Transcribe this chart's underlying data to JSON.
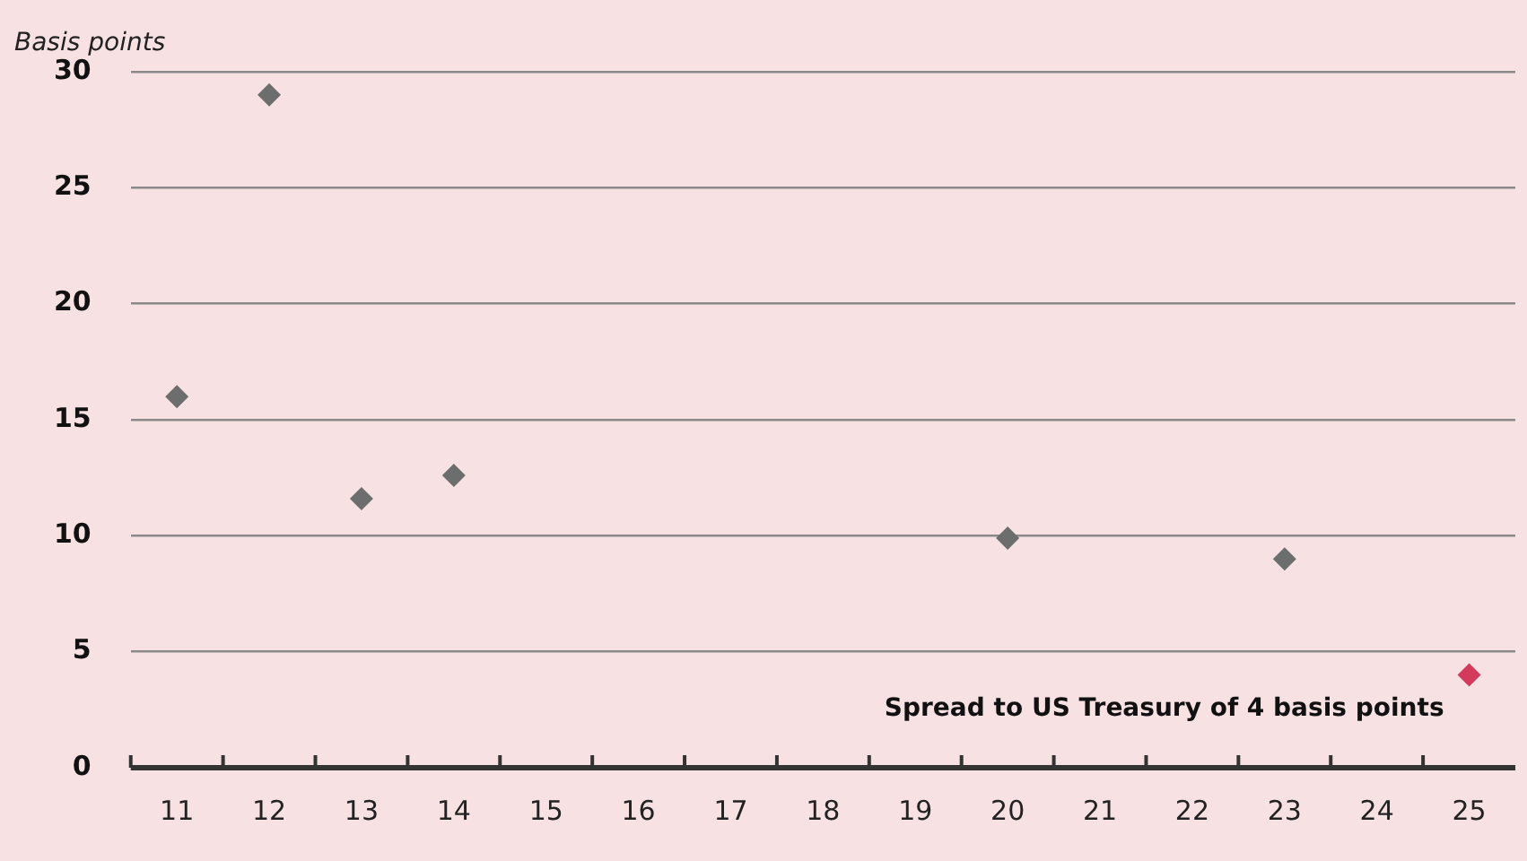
{
  "chart_data": {
    "type": "scatter",
    "ylabel": "Basis points",
    "categories": [
      "11",
      "12",
      "13",
      "14",
      "15",
      "16",
      "17",
      "18",
      "19",
      "20",
      "21",
      "22",
      "23",
      "24",
      "25"
    ],
    "series": [
      {
        "color": "#6b6e6c",
        "values": [
          16,
          29,
          11.6,
          12.6,
          null,
          null,
          null,
          null,
          null,
          9.9,
          null,
          null,
          9,
          null,
          null
        ]
      },
      {
        "color": "#d33a5c",
        "values": [
          null,
          null,
          null,
          null,
          null,
          null,
          null,
          null,
          null,
          null,
          null,
          null,
          null,
          null,
          4
        ]
      }
    ],
    "ylim": [
      0,
      30
    ],
    "yticks": [
      0,
      5,
      10,
      15,
      20,
      25,
      30
    ],
    "grid": "y",
    "marker": "diamond",
    "annotations": [
      {
        "text": "Spread to US Treasury of 4 basis points",
        "x": "25",
        "y": 4
      }
    ]
  }
}
